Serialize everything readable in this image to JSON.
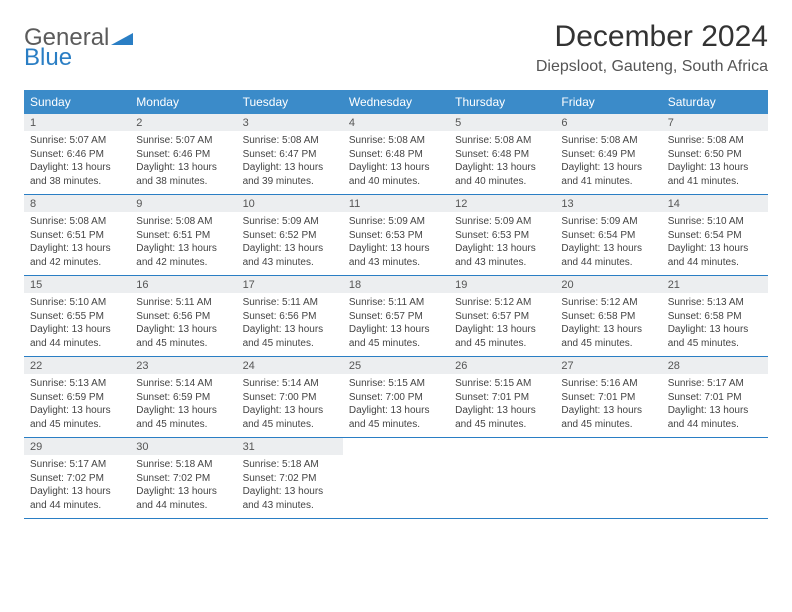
{
  "brand": {
    "line1": "General",
    "line2": "Blue"
  },
  "title": "December 2024",
  "location": "Diepsloot, Gauteng, South Africa",
  "colors": {
    "header_bg": "#3b8bc9",
    "header_text": "#ffffff",
    "daynum_bg": "#eceef0",
    "border": "#2a7ec4",
    "brand_gray": "#5b5b5b",
    "brand_blue": "#2a7ec4"
  },
  "weekdays": [
    "Sunday",
    "Monday",
    "Tuesday",
    "Wednesday",
    "Thursday",
    "Friday",
    "Saturday"
  ],
  "days": [
    {
      "n": "1",
      "sr": "5:07 AM",
      "ss": "6:46 PM",
      "dl": "13 hours and 38 minutes."
    },
    {
      "n": "2",
      "sr": "5:07 AM",
      "ss": "6:46 PM",
      "dl": "13 hours and 38 minutes."
    },
    {
      "n": "3",
      "sr": "5:08 AM",
      "ss": "6:47 PM",
      "dl": "13 hours and 39 minutes."
    },
    {
      "n": "4",
      "sr": "5:08 AM",
      "ss": "6:48 PM",
      "dl": "13 hours and 40 minutes."
    },
    {
      "n": "5",
      "sr": "5:08 AM",
      "ss": "6:48 PM",
      "dl": "13 hours and 40 minutes."
    },
    {
      "n": "6",
      "sr": "5:08 AM",
      "ss": "6:49 PM",
      "dl": "13 hours and 41 minutes."
    },
    {
      "n": "7",
      "sr": "5:08 AM",
      "ss": "6:50 PM",
      "dl": "13 hours and 41 minutes."
    },
    {
      "n": "8",
      "sr": "5:08 AM",
      "ss": "6:51 PM",
      "dl": "13 hours and 42 minutes."
    },
    {
      "n": "9",
      "sr": "5:08 AM",
      "ss": "6:51 PM",
      "dl": "13 hours and 42 minutes."
    },
    {
      "n": "10",
      "sr": "5:09 AM",
      "ss": "6:52 PM",
      "dl": "13 hours and 43 minutes."
    },
    {
      "n": "11",
      "sr": "5:09 AM",
      "ss": "6:53 PM",
      "dl": "13 hours and 43 minutes."
    },
    {
      "n": "12",
      "sr": "5:09 AM",
      "ss": "6:53 PM",
      "dl": "13 hours and 43 minutes."
    },
    {
      "n": "13",
      "sr": "5:09 AM",
      "ss": "6:54 PM",
      "dl": "13 hours and 44 minutes."
    },
    {
      "n": "14",
      "sr": "5:10 AM",
      "ss": "6:54 PM",
      "dl": "13 hours and 44 minutes."
    },
    {
      "n": "15",
      "sr": "5:10 AM",
      "ss": "6:55 PM",
      "dl": "13 hours and 44 minutes."
    },
    {
      "n": "16",
      "sr": "5:11 AM",
      "ss": "6:56 PM",
      "dl": "13 hours and 45 minutes."
    },
    {
      "n": "17",
      "sr": "5:11 AM",
      "ss": "6:56 PM",
      "dl": "13 hours and 45 minutes."
    },
    {
      "n": "18",
      "sr": "5:11 AM",
      "ss": "6:57 PM",
      "dl": "13 hours and 45 minutes."
    },
    {
      "n": "19",
      "sr": "5:12 AM",
      "ss": "6:57 PM",
      "dl": "13 hours and 45 minutes."
    },
    {
      "n": "20",
      "sr": "5:12 AM",
      "ss": "6:58 PM",
      "dl": "13 hours and 45 minutes."
    },
    {
      "n": "21",
      "sr": "5:13 AM",
      "ss": "6:58 PM",
      "dl": "13 hours and 45 minutes."
    },
    {
      "n": "22",
      "sr": "5:13 AM",
      "ss": "6:59 PM",
      "dl": "13 hours and 45 minutes."
    },
    {
      "n": "23",
      "sr": "5:14 AM",
      "ss": "6:59 PM",
      "dl": "13 hours and 45 minutes."
    },
    {
      "n": "24",
      "sr": "5:14 AM",
      "ss": "7:00 PM",
      "dl": "13 hours and 45 minutes."
    },
    {
      "n": "25",
      "sr": "5:15 AM",
      "ss": "7:00 PM",
      "dl": "13 hours and 45 minutes."
    },
    {
      "n": "26",
      "sr": "5:15 AM",
      "ss": "7:01 PM",
      "dl": "13 hours and 45 minutes."
    },
    {
      "n": "27",
      "sr": "5:16 AM",
      "ss": "7:01 PM",
      "dl": "13 hours and 45 minutes."
    },
    {
      "n": "28",
      "sr": "5:17 AM",
      "ss": "7:01 PM",
      "dl": "13 hours and 44 minutes."
    },
    {
      "n": "29",
      "sr": "5:17 AM",
      "ss": "7:02 PM",
      "dl": "13 hours and 44 minutes."
    },
    {
      "n": "30",
      "sr": "5:18 AM",
      "ss": "7:02 PM",
      "dl": "13 hours and 44 minutes."
    },
    {
      "n": "31",
      "sr": "5:18 AM",
      "ss": "7:02 PM",
      "dl": "13 hours and 43 minutes."
    }
  ],
  "labels": {
    "sunrise": "Sunrise:",
    "sunset": "Sunset:",
    "daylight": "Daylight:"
  }
}
